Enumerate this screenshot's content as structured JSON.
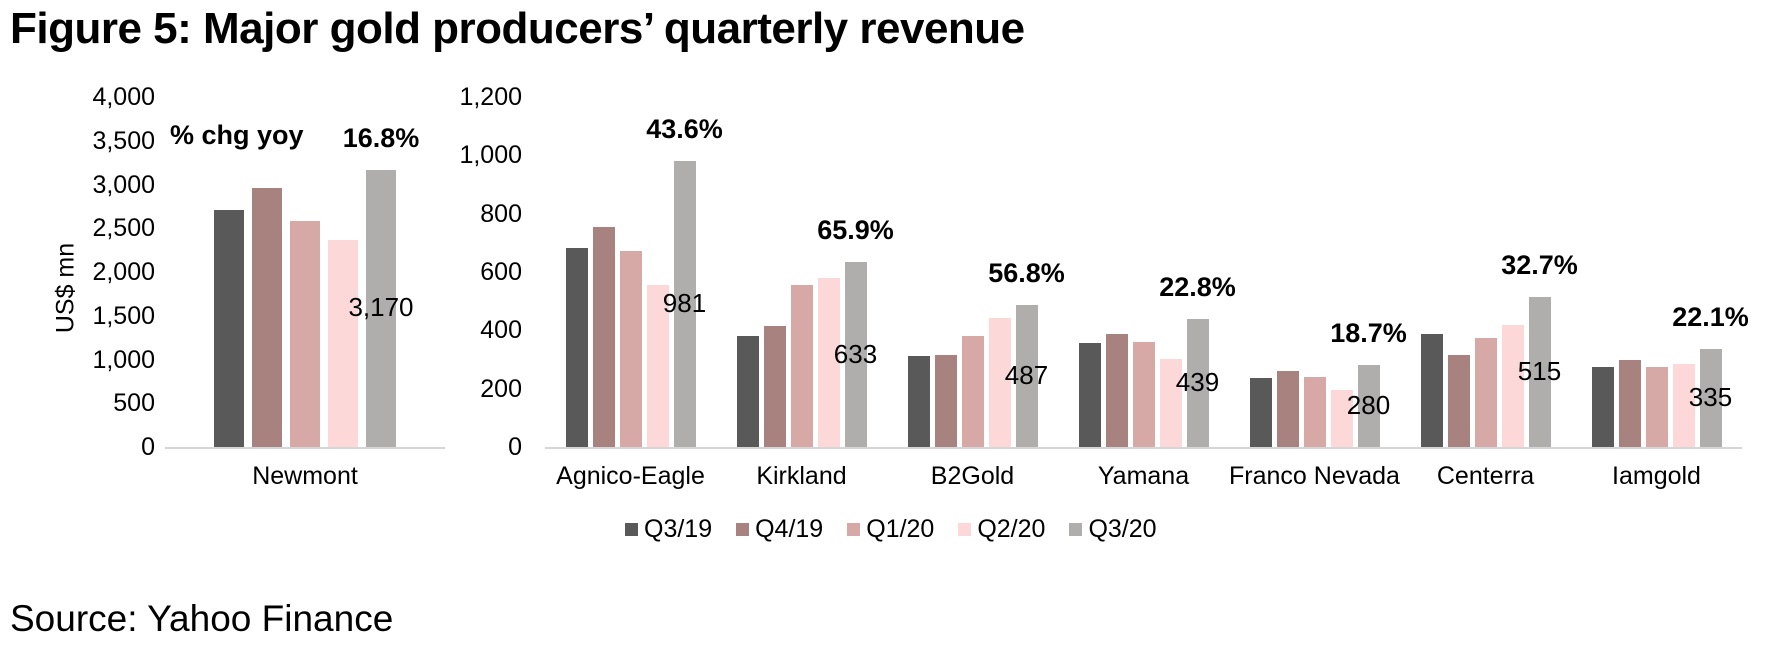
{
  "figure": {
    "title": "Figure 5: Major gold producers’ quarterly revenue",
    "source": "Source: Yahoo Finance"
  },
  "colors": {
    "series": [
      "#595959",
      "#a8827f",
      "#d6a9a6",
      "#fcd9d8",
      "#b0adad"
    ],
    "axis_line": "#d6d6d6",
    "text": "#000000"
  },
  "legend": [
    "Q3/19",
    "Q4/19",
    "Q1/20",
    "Q2/20",
    "Q3/20"
  ],
  "chart_data": [
    {
      "type": "bar",
      "title": "",
      "xlabel": "",
      "ylabel": "US$ mn",
      "ylim": [
        0,
        4000
      ],
      "yticks": [
        0,
        500,
        1000,
        1500,
        2000,
        2500,
        3000,
        3500,
        4000
      ],
      "grid": false,
      "legend_position": "none",
      "categories": [
        "Newmont"
      ],
      "series": [
        {
          "name": "Q3/19",
          "values": [
            2713
          ]
        },
        {
          "name": "Q4/19",
          "values": [
            2965
          ]
        },
        {
          "name": "Q1/20",
          "values": [
            2581
          ]
        },
        {
          "name": "Q2/20",
          "values": [
            2365
          ]
        },
        {
          "name": "Q3/20",
          "values": [
            3170
          ]
        }
      ],
      "annotations": {
        "header": "% chg yoy",
        "pct_labels": [
          "16.8%"
        ],
        "value_labels": [
          "3,170"
        ]
      }
    },
    {
      "type": "bar",
      "title": "",
      "xlabel": "",
      "ylabel": "",
      "ylim": [
        0,
        1200
      ],
      "yticks": [
        0,
        200,
        400,
        600,
        800,
        1000,
        1200
      ],
      "grid": false,
      "legend_position": "bottom",
      "categories": [
        "Agnico-Eagle",
        "Kirkland",
        "B2Gold",
        "Yamana",
        "Franco Nevada",
        "Centerra",
        "Iamgold"
      ],
      "series": [
        {
          "name": "Q3/19",
          "values": [
            683,
            381,
            311,
            358,
            236,
            388,
            274
          ]
        },
        {
          "name": "Q4/19",
          "values": [
            753,
            415,
            314,
            386,
            260,
            315,
            298
          ]
        },
        {
          "name": "Q1/20",
          "values": [
            672,
            555,
            380,
            360,
            241,
            374,
            276
          ]
        },
        {
          "name": "Q2/20",
          "values": [
            557,
            581,
            442,
            303,
            195,
            420,
            285
          ]
        },
        {
          "name": "Q3/20",
          "values": [
            981,
            633,
            487,
            439,
            280,
            515,
            335
          ]
        }
      ],
      "annotations": {
        "header": "",
        "pct_labels": [
          "43.6%",
          "65.9%",
          "56.8%",
          "22.8%",
          "18.7%",
          "32.7%",
          "22.1%"
        ],
        "value_labels": [
          "981",
          "633",
          "487",
          "439",
          "280",
          "515",
          "335"
        ]
      }
    }
  ]
}
